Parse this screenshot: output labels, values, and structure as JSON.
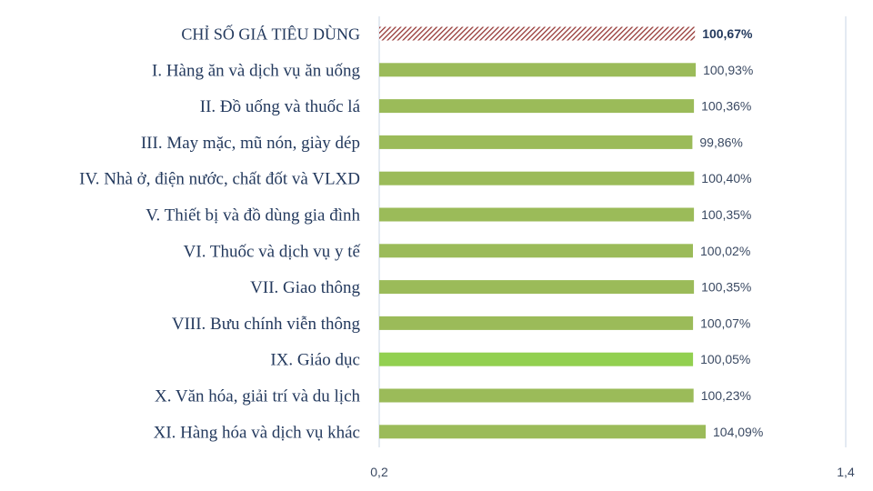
{
  "chart_data": {
    "type": "bar",
    "orientation": "horizontal",
    "categories": [
      "CHỈ SỐ GIÁ TIÊU DÙNG",
      "I. Hàng ăn và dịch vụ ăn uống",
      "II. Đồ uống và thuốc lá",
      "III. May mặc, mũ nón, giày dép",
      "IV.  Nhà ở, điện nước, chất đốt và VLXD",
      "V. Thiết bị và đồ dùng gia đình",
      "VI. Thuốc và dịch vụ y tế",
      "VII.  Giao thông",
      "VIII.  Bưu chính viễn thông",
      "IX. Giáo dục",
      "X. Văn hóa, giải trí và du lịch",
      "XI. Hàng hóa và dịch vụ khác"
    ],
    "values": [
      100.67,
      100.93,
      100.36,
      99.86,
      100.4,
      100.35,
      100.02,
      100.35,
      100.07,
      100.05,
      100.23,
      104.09
    ],
    "value_labels": [
      "100,67%",
      "100,93%",
      "100,36%",
      "99,86%",
      "100,40%",
      "100,35%",
      "100,02%",
      "100,35%",
      "100,07%",
      "100,05%",
      "100,23%",
      "104,09%"
    ],
    "xlim": [
      0.2,
      1.4
    ],
    "x_ticks": [
      "0,2",
      "1,4"
    ],
    "grid": false,
    "colors": {
      "bar": "#9bbb59",
      "bar_highlight": "#92d050",
      "total_pattern": "#953735",
      "axis": "#c9d6e6"
    }
  }
}
